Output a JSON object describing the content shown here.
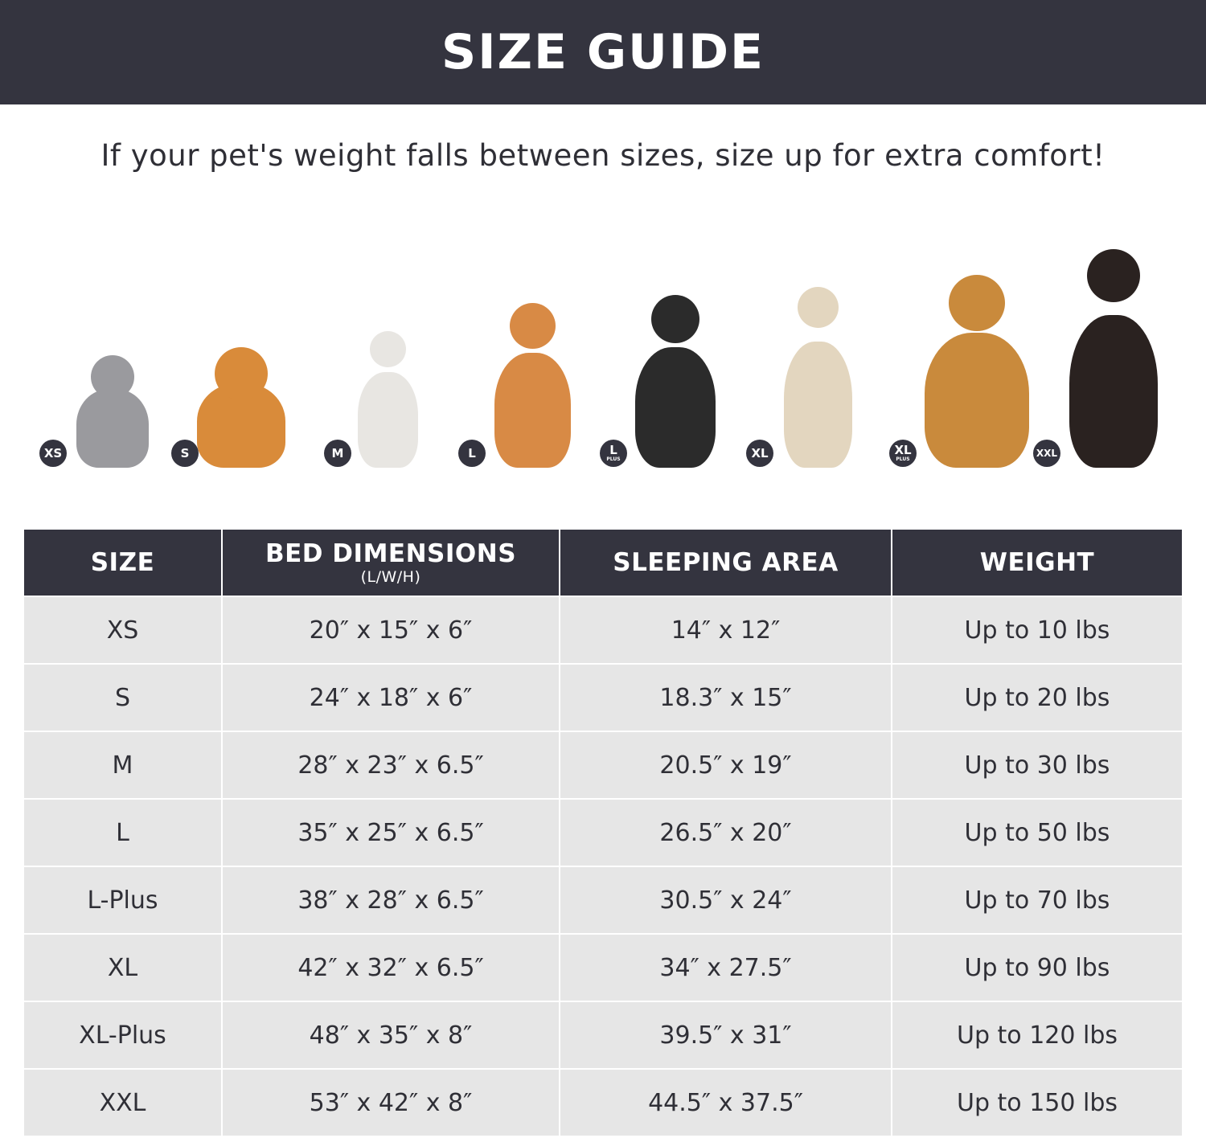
{
  "banner": {
    "title": "SIZE GUIDE"
  },
  "subtitle": "If your pet's weight falls between sizes, size up for extra comfort!",
  "colors": {
    "dark": "#34343f",
    "row": "#e6e6e6",
    "text": "#2f2f36"
  },
  "pets": [
    {
      "badge": "XS",
      "badge_sub": "",
      "animal": "gray-cat"
    },
    {
      "badge": "S",
      "badge_sub": "",
      "animal": "pomeranian"
    },
    {
      "badge": "M",
      "badge_sub": "",
      "animal": "french-bulldog"
    },
    {
      "badge": "L",
      "badge_sub": "",
      "animal": "shiba-inu"
    },
    {
      "badge": "L",
      "badge_sub": "PLUS",
      "animal": "border-collie"
    },
    {
      "badge": "XL",
      "badge_sub": "",
      "animal": "labrador"
    },
    {
      "badge": "XL",
      "badge_sub": "PLUS",
      "animal": "golden-retriever"
    },
    {
      "badge": "XXL",
      "badge_sub": "",
      "animal": "doberman"
    }
  ],
  "table": {
    "headers": {
      "size": "SIZE",
      "dimensions": "BED DIMENSIONS",
      "dimensions_sub": "(L/W/H)",
      "area": "SLEEPING AREA",
      "weight": "WEIGHT"
    },
    "rows": [
      {
        "size": "XS",
        "dimensions": "20″ x 15″ x 6″",
        "area": "14″ x 12″",
        "weight": "Up to 10 lbs"
      },
      {
        "size": "S",
        "dimensions": "24″ x 18″ x 6″",
        "area": "18.3″ x 15″",
        "weight": "Up to 20 lbs"
      },
      {
        "size": "M",
        "dimensions": "28″ x 23″ x 6.5″",
        "area": "20.5″ x 19″",
        "weight": "Up to 30 lbs"
      },
      {
        "size": "L",
        "dimensions": "35″ x 25″ x 6.5″",
        "area": "26.5″ x 20″",
        "weight": "Up to 50 lbs"
      },
      {
        "size": "L-Plus",
        "dimensions": "38″ x 28″ x 6.5″",
        "area": "30.5″ x 24″",
        "weight": "Up to 70 lbs"
      },
      {
        "size": "XL",
        "dimensions": "42″ x 32″ x 6.5″",
        "area": "34″ x 27.5″",
        "weight": "Up to 90 lbs"
      },
      {
        "size": "XL-Plus",
        "dimensions": "48″ x 35″ x 8″",
        "area": "39.5″ x 31″",
        "weight": "Up to 120 lbs"
      },
      {
        "size": "XXL",
        "dimensions": "53″ x 42″ x 8″",
        "area": "44.5″ x 37.5″",
        "weight": "Up to 150 lbs"
      }
    ]
  }
}
